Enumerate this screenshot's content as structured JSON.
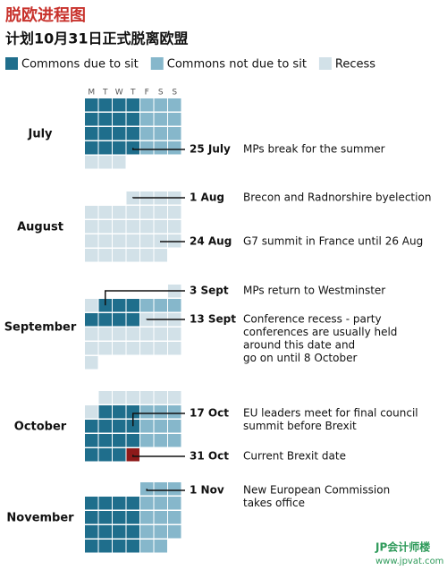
{
  "chart_data": {
    "type": "calendar",
    "title": "脱欧进程图",
    "subtitle": "计划10月31日正式脱离欧盟",
    "legend": [
      {
        "name": "Commons due to sit",
        "color": "#1f6e8c"
      },
      {
        "name": "Commons not due to sit",
        "color": "#86b7cb"
      },
      {
        "name": "Recess",
        "color": "#d2e1e8"
      }
    ],
    "weekdays": [
      "M",
      "T",
      "W",
      "T",
      "F",
      "S",
      "S"
    ],
    "months": [
      {
        "name": "July",
        "first_weekday": 0,
        "days": [
          0,
          0,
          0,
          0,
          1,
          1,
          1,
          0,
          0,
          0,
          0,
          1,
          1,
          1,
          0,
          0,
          0,
          0,
          1,
          1,
          1,
          0,
          0,
          0,
          0,
          1,
          1,
          1,
          2,
          2,
          2
        ]
      },
      {
        "name": "August",
        "first_weekday": 3,
        "days": [
          2,
          2,
          2,
          2,
          2,
          2,
          2,
          2,
          2,
          2,
          2,
          2,
          2,
          2,
          2,
          2,
          2,
          2,
          2,
          2,
          2,
          2,
          2,
          2,
          2,
          2,
          2,
          2,
          2,
          2,
          2
        ]
      },
      {
        "name": "September",
        "first_weekday": 6,
        "days": [
          2,
          2,
          0,
          0,
          0,
          1,
          1,
          1,
          0,
          0,
          0,
          0,
          2,
          2,
          2,
          2,
          2,
          2,
          2,
          2,
          2,
          2,
          2,
          2,
          2,
          2,
          2,
          2,
          2,
          2
        ]
      },
      {
        "name": "October",
        "first_weekday": 1,
        "days": [
          2,
          2,
          2,
          2,
          2,
          2,
          2,
          0,
          0,
          0,
          1,
          1,
          1,
          0,
          0,
          0,
          0,
          1,
          1,
          1,
          0,
          0,
          0,
          0,
          1,
          1,
          1,
          0,
          0,
          0,
          0
        ],
        "highlight_day": 31,
        "highlight_color": "#8e1a1a"
      },
      {
        "name": "November",
        "first_weekday": 4,
        "days": [
          1,
          1,
          1,
          0,
          0,
          0,
          0,
          1,
          1,
          1,
          0,
          0,
          0,
          0,
          1,
          1,
          1,
          0,
          0,
          0,
          0,
          1,
          1,
          1,
          0,
          0,
          0,
          0,
          1,
          1
        ]
      }
    ],
    "annotations": [
      {
        "label": "25 July",
        "text": [
          "MPs break for the summer"
        ],
        "month": 0,
        "day": 25
      },
      {
        "label": "1 Aug",
        "text": [
          "Brecon and Radnorshire byelection"
        ],
        "month": 1,
        "day": 1
      },
      {
        "label": "24 Aug",
        "text": [
          "G7 summit in France until 26 Aug"
        ],
        "month": 1,
        "day": 24
      },
      {
        "label": "3 Sept",
        "text": [
          "MPs return to Westminster"
        ],
        "month": 2,
        "day": 3
      },
      {
        "label": "13 Sept",
        "text": [
          "Conference recess - party",
          "conferences are usually held",
          "around this date and",
          "go on until 8 October"
        ],
        "month": 2,
        "day": 13
      },
      {
        "label": "17 Oct",
        "text": [
          "EU leaders meet for final council",
          "summit before Brexit"
        ],
        "month": 3,
        "day": 17
      },
      {
        "label": "31 Oct",
        "text": [
          "Current Brexit date"
        ],
        "month": 3,
        "day": 31
      },
      {
        "label": "1 Nov",
        "text": [
          "New European Commission",
          "takes office"
        ],
        "month": 4,
        "day": 1
      }
    ],
    "footer": [
      "JP会计师楼",
      "www.jpvat.com"
    ]
  }
}
